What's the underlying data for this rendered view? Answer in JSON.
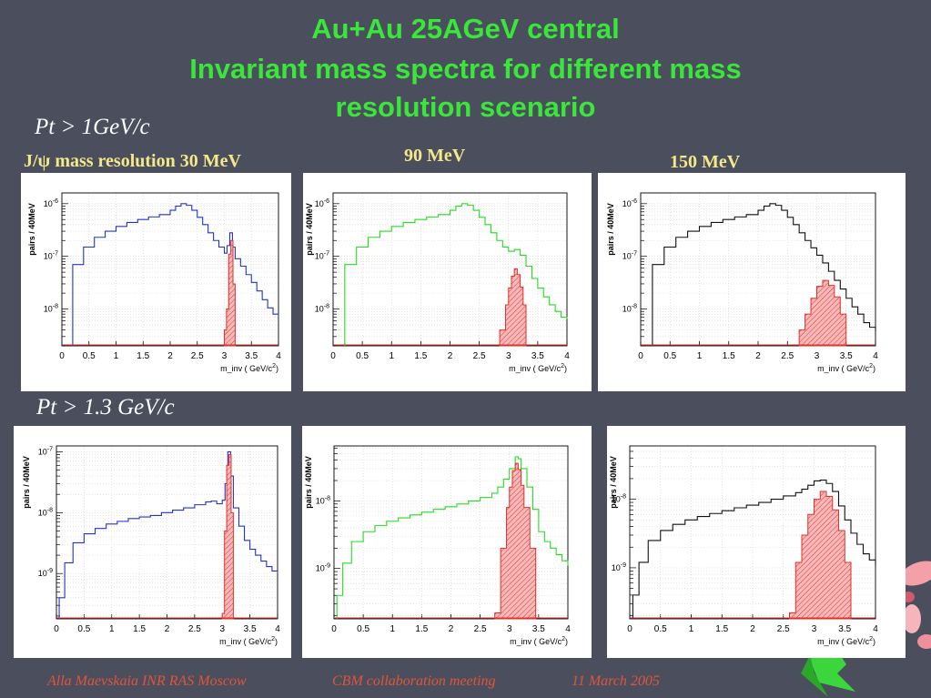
{
  "title": {
    "line1": "Au+Au 25AGeV central",
    "line2": "Invariant mass spectra for different mass",
    "line3": "resolution scenario"
  },
  "cuts": {
    "top": "Pt  > 1GeV/c",
    "bottom": "Pt > 1.3 GeV/c"
  },
  "resolutions": {
    "r30": "J/ψ mass resolution 30 MeV",
    "r90": "90 MeV",
    "r150": "150 MeV"
  },
  "footer": {
    "author": "Alla Maevskaia   INR RAS Moscow",
    "meeting": "CBM collaboration meeting",
    "date": "11 March 2005"
  },
  "colors": {
    "title": "#39e639",
    "background": "#4b4e5c",
    "signal": "#e0302b",
    "signal_fill": "#f7b9b9"
  },
  "chart_data": [
    {
      "type": "line",
      "row": "Pt > 1GeV/c",
      "resolution": "30 MeV",
      "line_color": "#2233cc",
      "xlabel": "m_inv ( GeV/c^2)",
      "ylabel": "pairs / 40MeV",
      "xlim": [
        0,
        4
      ],
      "yscale": "log",
      "ylim": [
        2e-09,
        1.6e-06
      ],
      "xticks": [
        0,
        0.5,
        1,
        1.5,
        2,
        2.5,
        3,
        3.5,
        4
      ],
      "yticks": [
        {
          "v": 1e-08,
          "label": "10-8"
        },
        {
          "v": 1e-07,
          "label": "10-7"
        },
        {
          "v": 1e-06,
          "label": "10-6"
        }
      ],
      "background": [
        [
          0.2,
          7e-08
        ],
        [
          0.4,
          1.5e-07
        ],
        [
          0.6,
          2.3e-07
        ],
        [
          0.8,
          3e-07
        ],
        [
          1.0,
          3.7e-07
        ],
        [
          1.2,
          4.4e-07
        ],
        [
          1.4,
          5e-07
        ],
        [
          1.6,
          5.6e-07
        ],
        [
          1.8,
          6.2e-07
        ],
        [
          2.0,
          7.5e-07
        ],
        [
          2.1,
          9e-07
        ],
        [
          2.2,
          1e-06
        ],
        [
          2.3,
          9.3e-07
        ],
        [
          2.4,
          7.5e-07
        ],
        [
          2.5,
          5.5e-07
        ],
        [
          2.6,
          4e-07
        ],
        [
          2.7,
          2.8e-07
        ],
        [
          2.8,
          2e-07
        ],
        [
          2.9,
          1.5e-07
        ],
        [
          3.0,
          1.15e-07
        ],
        [
          3.05,
          1.6e-07
        ],
        [
          3.1,
          2.8e-07
        ],
        [
          3.15,
          1.5e-07
        ],
        [
          3.2,
          9e-08
        ],
        [
          3.3,
          6.5e-08
        ],
        [
          3.4,
          4.5e-08
        ],
        [
          3.5,
          3.2e-08
        ],
        [
          3.6,
          2.2e-08
        ],
        [
          3.7,
          1.5e-08
        ],
        [
          3.8,
          1.05e-08
        ],
        [
          3.9,
          8e-09
        ],
        [
          4.0,
          7e-09
        ]
      ],
      "signal": [
        [
          3.0,
          4e-09
        ],
        [
          3.04,
          1e-08
        ],
        [
          3.08,
          1.1e-07
        ],
        [
          3.12,
          2e-07
        ],
        [
          3.16,
          3e-08
        ],
        [
          3.2,
          4e-09
        ]
      ]
    },
    {
      "type": "line",
      "row": "Pt > 1GeV/c",
      "resolution": "90 MeV",
      "line_color": "#22dd22",
      "xlabel": "m_inv ( GeV/c^2)",
      "ylabel": "pairs / 40MeV",
      "xlim": [
        0,
        4
      ],
      "yscale": "log",
      "ylim": [
        2e-09,
        1.6e-06
      ],
      "xticks": [
        0,
        0.5,
        1,
        1.5,
        2,
        2.5,
        3,
        3.5,
        4
      ],
      "yticks": [
        {
          "v": 1e-08,
          "label": "10-8"
        },
        {
          "v": 1e-07,
          "label": "10-7"
        },
        {
          "v": 1e-06,
          "label": "10-6"
        }
      ],
      "background": [
        [
          0.2,
          7e-08
        ],
        [
          0.4,
          1.5e-07
        ],
        [
          0.6,
          2.3e-07
        ],
        [
          0.8,
          3e-07
        ],
        [
          1.0,
          3.7e-07
        ],
        [
          1.2,
          4.4e-07
        ],
        [
          1.4,
          5e-07
        ],
        [
          1.6,
          5.6e-07
        ],
        [
          1.8,
          6.2e-07
        ],
        [
          2.0,
          7.5e-07
        ],
        [
          2.1,
          9e-07
        ],
        [
          2.2,
          1e-06
        ],
        [
          2.3,
          9.3e-07
        ],
        [
          2.4,
          7.5e-07
        ],
        [
          2.5,
          5.5e-07
        ],
        [
          2.6,
          4e-07
        ],
        [
          2.7,
          2.8e-07
        ],
        [
          2.8,
          2e-07
        ],
        [
          2.9,
          1.5e-07
        ],
        [
          3.0,
          1.25e-07
        ],
        [
          3.1,
          1.35e-07
        ],
        [
          3.2,
          1.05e-07
        ],
        [
          3.3,
          6.5e-08
        ],
        [
          3.4,
          3.8e-08
        ],
        [
          3.5,
          2.5e-08
        ],
        [
          3.6,
          1.7e-08
        ],
        [
          3.7,
          1.2e-08
        ],
        [
          3.8,
          9e-09
        ],
        [
          3.9,
          7e-09
        ],
        [
          4.0,
          6.5e-09
        ]
      ],
      "signal": [
        [
          2.85,
          4e-09
        ],
        [
          2.95,
          1.2e-08
        ],
        [
          3.0,
          2.5e-08
        ],
        [
          3.05,
          4.2e-08
        ],
        [
          3.1,
          5.8e-08
        ],
        [
          3.15,
          4.5e-08
        ],
        [
          3.2,
          2.6e-08
        ],
        [
          3.25,
          1.2e-08
        ],
        [
          3.3,
          4e-09
        ]
      ]
    },
    {
      "type": "line",
      "row": "Pt > 1GeV/c",
      "resolution": "150 MeV",
      "line_color": "#111111",
      "xlabel": "m_inv ( GeV/c^2)",
      "ylabel": "pairs / 40MeV",
      "xlim": [
        0,
        4
      ],
      "yscale": "log",
      "ylim": [
        2e-09,
        1.6e-06
      ],
      "xticks": [
        0,
        0.5,
        1,
        1.5,
        2,
        2.5,
        3,
        3.5,
        4
      ],
      "yticks": [
        {
          "v": 1e-08,
          "label": "10-8"
        },
        {
          "v": 1e-07,
          "label": "10-7"
        },
        {
          "v": 1e-06,
          "label": "10-6"
        }
      ],
      "background": [
        [
          0.2,
          7e-08
        ],
        [
          0.4,
          1.5e-07
        ],
        [
          0.6,
          2.3e-07
        ],
        [
          0.8,
          3e-07
        ],
        [
          1.0,
          3.7e-07
        ],
        [
          1.2,
          4.4e-07
        ],
        [
          1.4,
          5e-07
        ],
        [
          1.6,
          5.6e-07
        ],
        [
          1.8,
          6.2e-07
        ],
        [
          2.0,
          7.5e-07
        ],
        [
          2.1,
          9e-07
        ],
        [
          2.2,
          1e-06
        ],
        [
          2.3,
          9.3e-07
        ],
        [
          2.4,
          7.5e-07
        ],
        [
          2.5,
          5.5e-07
        ],
        [
          2.6,
          4e-07
        ],
        [
          2.7,
          2.8e-07
        ],
        [
          2.8,
          2e-07
        ],
        [
          2.9,
          1.45e-07
        ],
        [
          3.0,
          1.05e-07
        ],
        [
          3.1,
          7.5e-08
        ],
        [
          3.2,
          5.2e-08
        ],
        [
          3.3,
          3.5e-08
        ],
        [
          3.4,
          2.4e-08
        ],
        [
          3.5,
          1.6e-08
        ],
        [
          3.6,
          1.1e-08
        ],
        [
          3.7,
          8e-09
        ],
        [
          3.8,
          5.5e-09
        ],
        [
          3.9,
          4.5e-09
        ],
        [
          4.0,
          3.8e-09
        ]
      ],
      "signal": [
        [
          2.7,
          4e-09
        ],
        [
          2.8,
          8e-09
        ],
        [
          2.9,
          1.6e-08
        ],
        [
          3.0,
          2.7e-08
        ],
        [
          3.1,
          3.5e-08
        ],
        [
          3.2,
          2.8e-08
        ],
        [
          3.3,
          1.7e-08
        ],
        [
          3.4,
          8e-09
        ],
        [
          3.5,
          4e-09
        ]
      ]
    },
    {
      "type": "line",
      "row": "Pt > 1.3 GeV/c",
      "resolution": "30 MeV",
      "line_color": "#2233cc",
      "xlabel": "m_inv ( GeV/c^2)",
      "ylabel": "pairs / 40MeV",
      "xlim": [
        0,
        4
      ],
      "yscale": "log",
      "ylim": [
        1.8e-10,
        1.25e-07
      ],
      "xticks": [
        0,
        0.5,
        1,
        1.5,
        2,
        2.5,
        3,
        3.5,
        4
      ],
      "yticks": [
        {
          "v": 1e-09,
          "label": "10-9"
        },
        {
          "v": 1e-08,
          "label": "10-8"
        },
        {
          "v": 1e-07,
          "label": "10-7"
        }
      ],
      "background": [
        [
          0.05,
          4e-10
        ],
        [
          0.15,
          1.5e-09
        ],
        [
          0.3,
          3.2e-09
        ],
        [
          0.5,
          4.5e-09
        ],
        [
          0.7,
          5.5e-09
        ],
        [
          0.9,
          6.5e-09
        ],
        [
          1.1,
          7.2e-09
        ],
        [
          1.3,
          8e-09
        ],
        [
          1.5,
          8.5e-09
        ],
        [
          1.7,
          9e-09
        ],
        [
          1.9,
          1e-08
        ],
        [
          2.1,
          1.1e-08
        ],
        [
          2.3,
          1.2e-08
        ],
        [
          2.5,
          1.35e-08
        ],
        [
          2.7,
          1.5e-08
        ],
        [
          2.8,
          1.55e-08
        ],
        [
          2.9,
          1.4e-08
        ],
        [
          3.0,
          1.6e-08
        ],
        [
          3.05,
          3e-08
        ],
        [
          3.1,
          1e-07
        ],
        [
          3.15,
          4e-08
        ],
        [
          3.2,
          1.2e-08
        ],
        [
          3.3,
          6e-09
        ],
        [
          3.4,
          3.5e-09
        ],
        [
          3.5,
          2.5e-09
        ],
        [
          3.6,
          2e-09
        ],
        [
          3.7,
          1.6e-09
        ],
        [
          3.8,
          1.3e-09
        ],
        [
          3.9,
          1.1e-09
        ],
        [
          4.0,
          1e-09
        ]
      ],
      "signal": [
        [
          3.0,
          2.2e-10
        ],
        [
          3.04,
          5e-09
        ],
        [
          3.08,
          6e-08
        ],
        [
          3.12,
          9e-08
        ],
        [
          3.16,
          1e-08
        ],
        [
          3.2,
          2.2e-10
        ]
      ]
    },
    {
      "type": "line",
      "row": "Pt > 1.3 GeV/c",
      "resolution": "90 MeV",
      "line_color": "#22dd22",
      "xlabel": "m_inv ( GeV/c^2)",
      "ylabel": "pairs / 40MeV",
      "xlim": [
        0,
        4
      ],
      "yscale": "log",
      "ylim": [
        1.8e-10,
        6.5e-08
      ],
      "xticks": [
        0,
        0.5,
        1,
        1.5,
        2,
        2.5,
        3,
        3.5,
        4
      ],
      "yticks": [
        {
          "v": 1e-09,
          "label": "10-9"
        },
        {
          "v": 1e-08,
          "label": "10-8"
        }
      ],
      "background": [
        [
          0.05,
          4e-10
        ],
        [
          0.15,
          1.2e-09
        ],
        [
          0.3,
          2.5e-09
        ],
        [
          0.5,
          3.5e-09
        ],
        [
          0.7,
          4.3e-09
        ],
        [
          0.9,
          5e-09
        ],
        [
          1.1,
          5.6e-09
        ],
        [
          1.3,
          6.2e-09
        ],
        [
          1.5,
          6.8e-09
        ],
        [
          1.7,
          7.5e-09
        ],
        [
          1.9,
          8.2e-09
        ],
        [
          2.1,
          9e-09
        ],
        [
          2.3,
          1e-08
        ],
        [
          2.5,
          1.12e-08
        ],
        [
          2.7,
          1.3e-08
        ],
        [
          2.8,
          1.6e-08
        ],
        [
          2.9,
          2.1e-08
        ],
        [
          3.0,
          3e-08
        ],
        [
          3.1,
          4.5e-08
        ],
        [
          3.15,
          4.2e-08
        ],
        [
          3.2,
          3e-08
        ],
        [
          3.3,
          1.6e-08
        ],
        [
          3.4,
          7.5e-09
        ],
        [
          3.5,
          3.5e-09
        ],
        [
          3.6,
          2.5e-09
        ],
        [
          3.7,
          2e-09
        ],
        [
          3.8,
          1.6e-09
        ],
        [
          3.9,
          1.3e-09
        ],
        [
          4.0,
          1.1e-09
        ]
      ],
      "signal": [
        [
          2.75,
          2.2e-10
        ],
        [
          2.85,
          2e-09
        ],
        [
          2.95,
          8e-09
        ],
        [
          3.0,
          1.6e-08
        ],
        [
          3.05,
          2.8e-08
        ],
        [
          3.1,
          3.6e-08
        ],
        [
          3.15,
          2.9e-08
        ],
        [
          3.2,
          1.7e-08
        ],
        [
          3.25,
          8e-09
        ],
        [
          3.35,
          2e-09
        ],
        [
          3.45,
          2.2e-10
        ]
      ]
    },
    {
      "type": "line",
      "row": "Pt > 1.3 GeV/c",
      "resolution": "150 MeV",
      "line_color": "#111111",
      "xlabel": "m_inv ( GeV/c^2)",
      "ylabel": "pairs / 40MeV",
      "xlim": [
        0,
        4
      ],
      "yscale": "log",
      "ylim": [
        1.8e-10,
        6e-08
      ],
      "xticks": [
        0,
        0.5,
        1,
        1.5,
        2,
        2.5,
        3,
        3.5,
        4
      ],
      "yticks": [
        {
          "v": 1e-09,
          "label": "10-9"
        },
        {
          "v": 1e-08,
          "label": "10-8"
        }
      ],
      "background": [
        [
          0.05,
          4e-10
        ],
        [
          0.15,
          1.2e-09
        ],
        [
          0.3,
          2.5e-09
        ],
        [
          0.5,
          3.5e-09
        ],
        [
          0.7,
          4.3e-09
        ],
        [
          0.9,
          5e-09
        ],
        [
          1.1,
          5.6e-09
        ],
        [
          1.3,
          6.2e-09
        ],
        [
          1.5,
          6.8e-09
        ],
        [
          1.7,
          7.5e-09
        ],
        [
          1.9,
          8.2e-09
        ],
        [
          2.1,
          9e-09
        ],
        [
          2.3,
          1e-08
        ],
        [
          2.5,
          1.12e-08
        ],
        [
          2.7,
          1.25e-08
        ],
        [
          2.8,
          1.4e-08
        ],
        [
          2.9,
          1.6e-08
        ],
        [
          3.0,
          1.85e-08
        ],
        [
          3.1,
          1.9e-08
        ],
        [
          3.2,
          1.7e-08
        ],
        [
          3.3,
          1.3e-08
        ],
        [
          3.4,
          8e-09
        ],
        [
          3.5,
          5e-09
        ],
        [
          3.6,
          3.2e-09
        ],
        [
          3.7,
          2.2e-09
        ],
        [
          3.8,
          1.6e-09
        ],
        [
          3.9,
          1.3e-09
        ],
        [
          4.0,
          1.1e-09
        ]
      ],
      "signal": [
        [
          2.6,
          2.2e-10
        ],
        [
          2.7,
          1.2e-09
        ],
        [
          2.8,
          3e-09
        ],
        [
          2.9,
          6e-09
        ],
        [
          3.0,
          1e-08
        ],
        [
          3.1,
          1.3e-08
        ],
        [
          3.2,
          1.1e-08
        ],
        [
          3.3,
          7e-09
        ],
        [
          3.4,
          3.5e-09
        ],
        [
          3.5,
          1.2e-09
        ],
        [
          3.6,
          2.2e-10
        ]
      ]
    }
  ]
}
